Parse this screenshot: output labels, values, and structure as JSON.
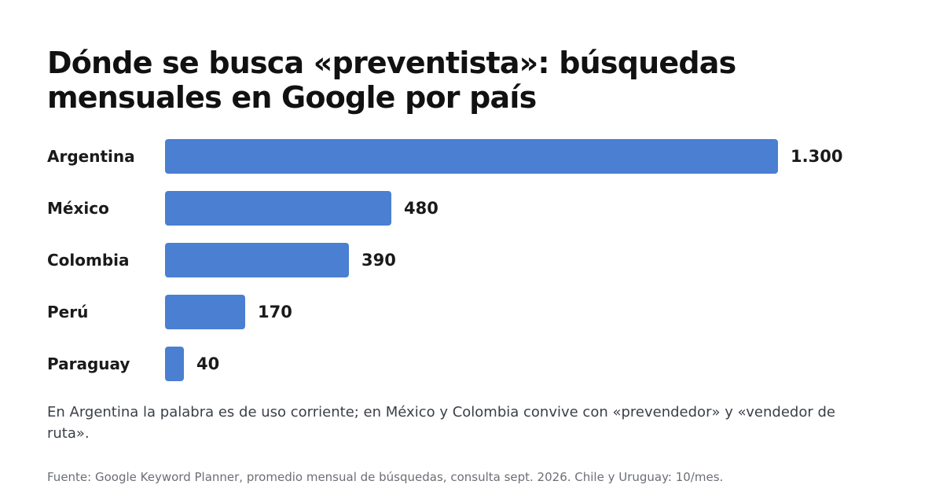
{
  "chart_data": {
    "type": "bar",
    "orientation": "horizontal",
    "title": "Dónde se busca «preventista»: búsquedas mensuales en Google por país",
    "categories": [
      "Argentina",
      "México",
      "Colombia",
      "Perú",
      "Paraguay"
    ],
    "values": [
      1300,
      480,
      390,
      170,
      40
    ],
    "value_labels": [
      "1.300",
      "480",
      "390",
      "170",
      "40"
    ],
    "xlim": [
      0,
      1300
    ],
    "grid": false,
    "legend": "none",
    "bar_color": "#4a7fd1"
  },
  "note": "En Argentina la palabra es de uso corriente; en México y Colombia convive con «prevendedor» y «vendedor de ruta».",
  "source": "Fuente: Google Keyword Planner, promedio mensual de búsquedas, consulta sept. 2026. Chile y Uruguay: 10/mes."
}
